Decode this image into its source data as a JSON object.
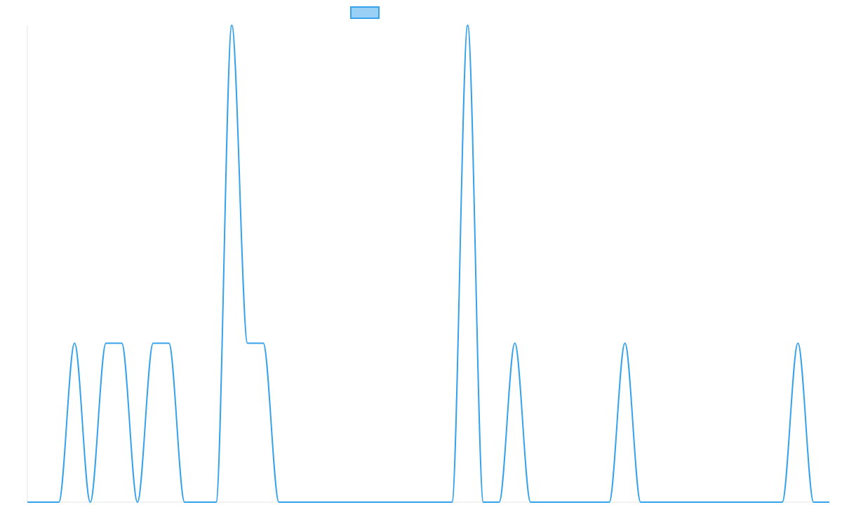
{
  "chart_data": {
    "type": "line",
    "title": "",
    "xlabel": "",
    "ylabel": "",
    "legend": {
      "placement": "top-center",
      "label": ""
    },
    "grid": false,
    "xlim": [
      0,
      51
    ],
    "ylim": [
      0,
      3
    ],
    "x": [
      0,
      1,
      2,
      3,
      4,
      5,
      6,
      7,
      8,
      9,
      10,
      11,
      12,
      13,
      14,
      15,
      16,
      17,
      18,
      19,
      20,
      21,
      22,
      23,
      24,
      25,
      26,
      27,
      28,
      29,
      30,
      31,
      32,
      33,
      34,
      35,
      36,
      37,
      38,
      39,
      40,
      41,
      42,
      43,
      44,
      45,
      46,
      47,
      48,
      49,
      50,
      51
    ],
    "series": [
      {
        "name": "",
        "color": "#36a2eb",
        "fill": "#9ad0f5",
        "values": [
          0,
          0,
          0,
          1,
          0,
          1,
          1,
          0,
          1,
          1,
          0,
          0,
          0,
          3,
          1,
          1,
          0,
          0,
          0,
          0,
          0,
          0,
          0,
          0,
          0,
          0,
          0,
          0,
          3,
          0,
          0,
          1,
          0,
          0,
          0,
          0,
          0,
          0,
          1,
          0,
          0,
          0,
          0,
          0,
          0,
          0,
          0,
          0,
          0,
          1,
          0,
          0
        ]
      }
    ]
  }
}
